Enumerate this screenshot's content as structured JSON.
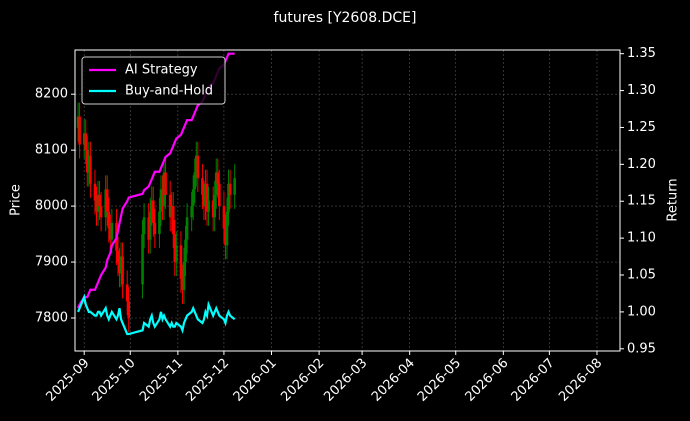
{
  "chart_data": {
    "type": "candlestick",
    "title": "futures [Y2608.DCE]",
    "y_label": "Price",
    "y2_label": "Return",
    "x": [
      "2025-08-28",
      "2025-08-29",
      "2025-09-01",
      "2025-09-02",
      "2025-09-03",
      "2025-09-04",
      "2025-09-05",
      "2025-09-08",
      "2025-09-09",
      "2025-09-10",
      "2025-09-11",
      "2025-09-12",
      "2025-09-15",
      "2025-09-16",
      "2025-09-17",
      "2025-09-18",
      "2025-09-19",
      "2025-09-22",
      "2025-09-23",
      "2025-09-24",
      "2025-09-25",
      "2025-09-26",
      "2025-09-29",
      "2025-09-30",
      "2025-10-09",
      "2025-10-10",
      "2025-10-13",
      "2025-10-14",
      "2025-10-15",
      "2025-10-16",
      "2025-10-17",
      "2025-10-20",
      "2025-10-21",
      "2025-10-22",
      "2025-10-23",
      "2025-10-24",
      "2025-10-27",
      "2025-10-28",
      "2025-10-29",
      "2025-10-30",
      "2025-10-31",
      "2025-11-03",
      "2025-11-04",
      "2025-11-05",
      "2025-11-06",
      "2025-11-07",
      "2025-11-10",
      "2025-11-11",
      "2025-11-12",
      "2025-11-13",
      "2025-11-14",
      "2025-11-17",
      "2025-11-18",
      "2025-11-19",
      "2025-11-20",
      "2025-11-21",
      "2025-11-24",
      "2025-11-25",
      "2025-11-26",
      "2025-11-27",
      "2025-11-28",
      "2025-12-01",
      "2025-12-02",
      "2025-12-03",
      "2025-12-04",
      "2025-12-05",
      "2025-12-08"
    ],
    "open": [
      8140,
      8160,
      8110,
      8130,
      8100,
      8060,
      8090,
      8040,
      8010,
      7990,
      8020,
      8000,
      7980,
      8030,
      7990,
      7960,
      7940,
      7970,
      7920,
      7900,
      7880,
      7910,
      7860,
      7830,
      7860,
      7950,
      7980,
      7940,
      7990,
      8010,
      7970,
      7950,
      7990,
      8030,
      8000,
      8060,
      8020,
      7980,
      8000,
      7950,
      7900,
      7930,
      7870,
      7850,
      7900,
      7940,
      7980,
      8000,
      8030,
      8060,
      8090,
      8050,
      8020,
      8000,
      8040,
      7990,
      8010,
      7980,
      8020,
      8060,
      8040,
      8000,
      7960,
      7930,
      7990,
      8040,
      8020
    ],
    "high": [
      8185,
      8185,
      8155,
      8155,
      8125,
      8115,
      8115,
      8065,
      8035,
      8045,
      8045,
      8025,
      8055,
      8055,
      8015,
      7985,
      7995,
      7995,
      7945,
      7925,
      7935,
      7935,
      7885,
      7855,
      7975,
      8005,
      8005,
      8015,
      8035,
      8035,
      7995,
      8015,
      8055,
      8055,
      8085,
      8085,
      8045,
      8025,
      8025,
      7975,
      7955,
      7955,
      7895,
      7925,
      7965,
      8005,
      8025,
      8055,
      8085,
      8115,
      8115,
      8075,
      8045,
      8065,
      8065,
      8035,
      8035,
      8045,
      8085,
      8085,
      8065,
      8025,
      7985,
      8015,
      8065,
      8065,
      8075
    ],
    "low": [
      8115,
      8085,
      8085,
      8075,
      8035,
      8035,
      8015,
      7985,
      7965,
      7965,
      7975,
      7955,
      7955,
      7965,
      7935,
      7915,
      7915,
      7895,
      7875,
      7855,
      7855,
      7835,
      7805,
      7775,
      7835,
      7925,
      7915,
      7915,
      7965,
      7945,
      7925,
      7925,
      7965,
      7975,
      7975,
      7995,
      7955,
      7955,
      7925,
      7875,
      7875,
      7845,
      7825,
      7825,
      7875,
      7915,
      7955,
      7975,
      8005,
      8035,
      8025,
      7995,
      7975,
      7975,
      7965,
      7965,
      7955,
      7955,
      7995,
      8015,
      7975,
      7935,
      7905,
      7905,
      7965,
      7995,
      7995
    ],
    "close": [
      8160,
      8110,
      8130,
      8100,
      8060,
      8090,
      8040,
      8010,
      7990,
      8020,
      8000,
      7980,
      8030,
      7990,
      7960,
      7940,
      7970,
      7920,
      7900,
      7880,
      7910,
      7860,
      7830,
      7800,
      7950,
      7980,
      7940,
      7990,
      8010,
      7970,
      7950,
      7990,
      8030,
      8000,
      8060,
      8020,
      7980,
      8000,
      7950,
      7900,
      7930,
      7870,
      7850,
      7900,
      7940,
      7980,
      8000,
      8030,
      8060,
      8090,
      8050,
      8020,
      8000,
      8040,
      7990,
      8010,
      7980,
      8020,
      8060,
      8040,
      8000,
      7960,
      7930,
      7990,
      8040,
      8020,
      8050
    ],
    "up_color": "#008000",
    "down_color": "#ff0000",
    "series": [
      {
        "name": "AI Strategy",
        "color": "#ff00ff",
        "axis": "y2",
        "values": [
          1.005,
          1.01,
          1.02,
          1.02,
          1.02,
          1.025,
          1.03,
          1.03,
          1.035,
          1.04,
          1.045,
          1.05,
          1.06,
          1.07,
          1.075,
          1.08,
          1.09,
          1.1,
          1.11,
          1.12,
          1.13,
          1.14,
          1.15,
          1.155,
          1.16,
          1.165,
          1.17,
          1.175,
          1.18,
          1.185,
          1.19,
          1.19,
          1.195,
          1.2,
          1.205,
          1.21,
          1.215,
          1.22,
          1.225,
          1.23,
          1.235,
          1.24,
          1.245,
          1.25,
          1.255,
          1.26,
          1.26,
          1.265,
          1.27,
          1.275,
          1.28,
          1.285,
          1.29,
          1.295,
          1.3,
          1.305,
          1.31,
          1.315,
          1.32,
          1.325,
          1.33,
          1.335,
          1.34,
          1.345,
          1.35,
          1.35,
          1.35
        ]
      },
      {
        "name": "Buy-and-Hold",
        "color": "#00ffff",
        "axis": "y2",
        "values": [
          1.0,
          1.005,
          1.02,
          1.01,
          1.005,
          1.0,
          1.0,
          0.995,
          0.995,
          1.0,
          1.0,
          0.995,
          1.005,
          0.995,
          0.99,
          0.995,
          1.0,
          0.99,
          0.995,
          1.005,
          0.99,
          0.985,
          0.97,
          0.97,
          0.975,
          0.985,
          0.98,
          0.99,
          0.995,
          0.985,
          0.98,
          0.99,
          1.0,
          0.99,
          0.995,
          0.99,
          0.98,
          0.985,
          0.98,
          0.98,
          0.985,
          0.98,
          0.975,
          0.985,
          0.99,
          0.995,
          1.0,
          1.005,
          1.0,
          0.995,
          0.99,
          0.985,
          0.99,
          1.0,
          0.995,
          1.01,
          0.995,
          1.0,
          1.005,
          1.0,
          0.995,
          0.99,
          0.985,
          0.995,
          1.0,
          0.995,
          0.99
        ]
      }
    ],
    "xlim": [
      "2025-08-26",
      "2026-08-16"
    ],
    "xticks": [
      "2025-09",
      "2025-10",
      "2025-11",
      "2025-12",
      "2026-01",
      "2026-02",
      "2026-03",
      "2026-04",
      "2026-05",
      "2026-06",
      "2026-07",
      "2026-08"
    ],
    "ylim": [
      7741,
      8279
    ],
    "yticks": [
      7800,
      7900,
      8000,
      8100,
      8200
    ],
    "y2lim": [
      0.947,
      1.355
    ],
    "y2ticks": [
      0.95,
      {
        "value": 1,
        "label": "1.00"
      },
      1.05,
      {
        "value": 1.1,
        "label": "1.10"
      },
      1.15,
      {
        "value": 1.2,
        "label": "1.20"
      },
      1.25,
      {
        "value": 1.3,
        "label": "1.30"
      },
      1.35
    ],
    "grid": true,
    "legend": "upper left"
  }
}
